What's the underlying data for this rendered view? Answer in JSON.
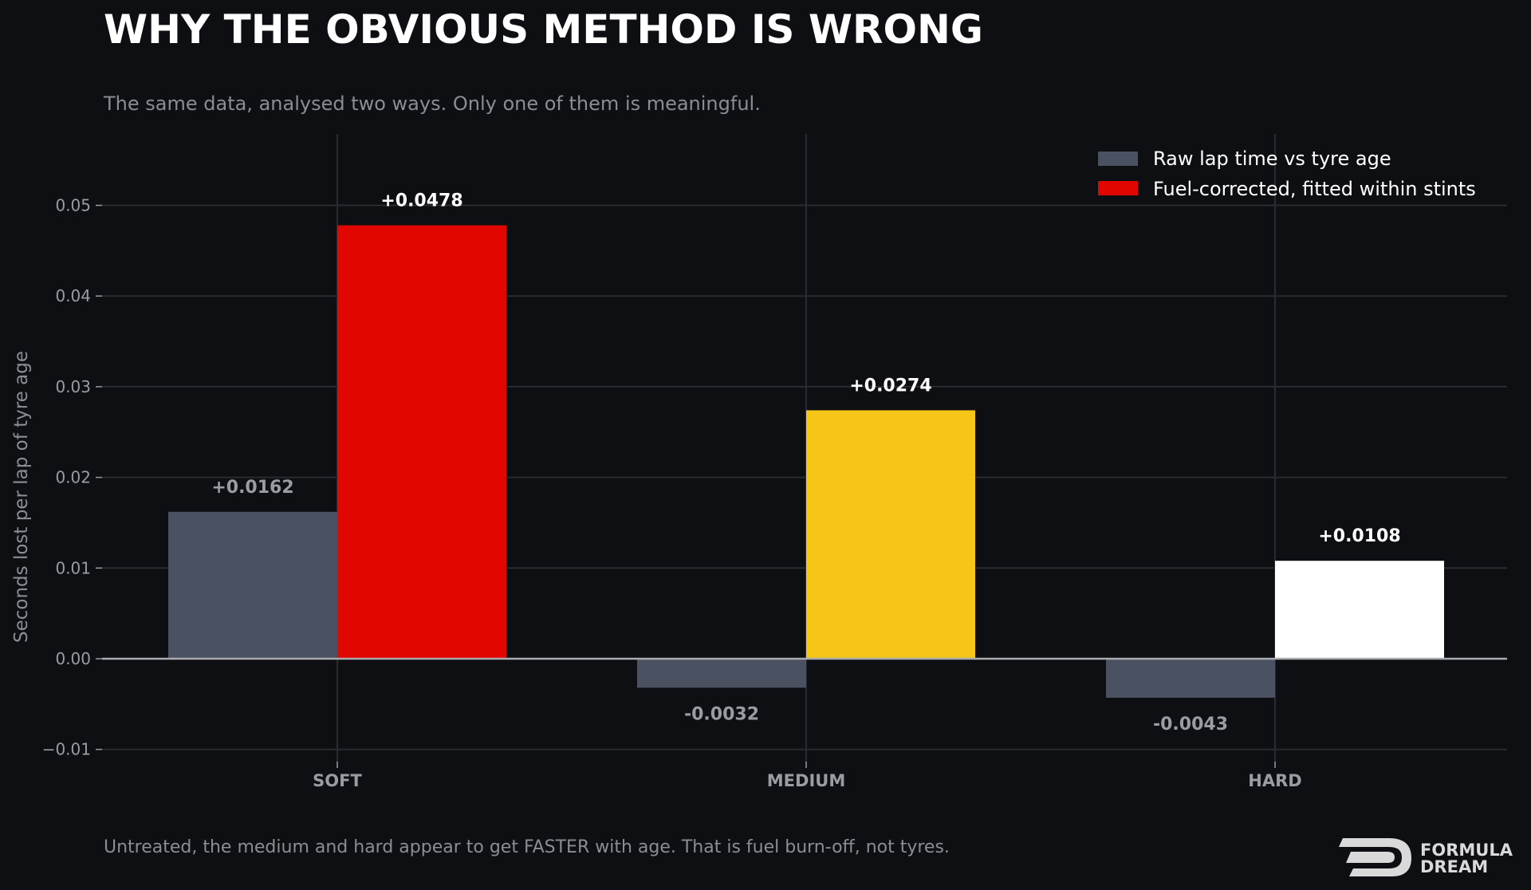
{
  "header": {
    "title": "WHY THE OBVIOUS METHOD IS WRONG",
    "subtitle": "The same data, analysed two ways. Only one of them is meaningful."
  },
  "footer": {
    "note": "Untreated, the medium and hard appear to get FASTER with age. That is fuel burn-off, not tyres.",
    "brand_line1": "FORMULA",
    "brand_line2": "DREAM"
  },
  "colors": {
    "background": "#0e0f12",
    "raw": "#4a5261",
    "fuel_corrected": "#e10600",
    "soft": "#e10600",
    "medium": "#f5c518",
    "hard": "#ffffff",
    "grid": "#2a2b30",
    "zero_line": "#a9abb1"
  },
  "chart_data": {
    "type": "bar",
    "title": "WHY THE OBVIOUS METHOD IS WRONG",
    "xlabel": "",
    "ylabel": "Seconds lost per lap of tyre age",
    "categories": [
      "SOFT",
      "MEDIUM",
      "HARD"
    ],
    "series": [
      {
        "name": "Raw lap time vs tyre age",
        "values": [
          0.0162,
          -0.0032,
          -0.0043
        ],
        "labels": [
          "+0.0162",
          "-0.0032",
          "-0.0043"
        ]
      },
      {
        "name": "Fuel-corrected, fitted within stints",
        "values": [
          0.0478,
          0.0274,
          0.0108
        ],
        "labels": [
          "+0.0478",
          "+0.0274",
          "+0.0108"
        ]
      }
    ],
    "ylim": [
      -0.012,
      0.058
    ],
    "yticks": [
      -0.01,
      0.0,
      0.01,
      0.02,
      0.03,
      0.04,
      0.05
    ],
    "ytick_labels": [
      "−0.01",
      "0.00",
      "0.01",
      "0.02",
      "0.03",
      "0.04",
      "0.05"
    ],
    "grid": true,
    "legend": "top-right"
  }
}
